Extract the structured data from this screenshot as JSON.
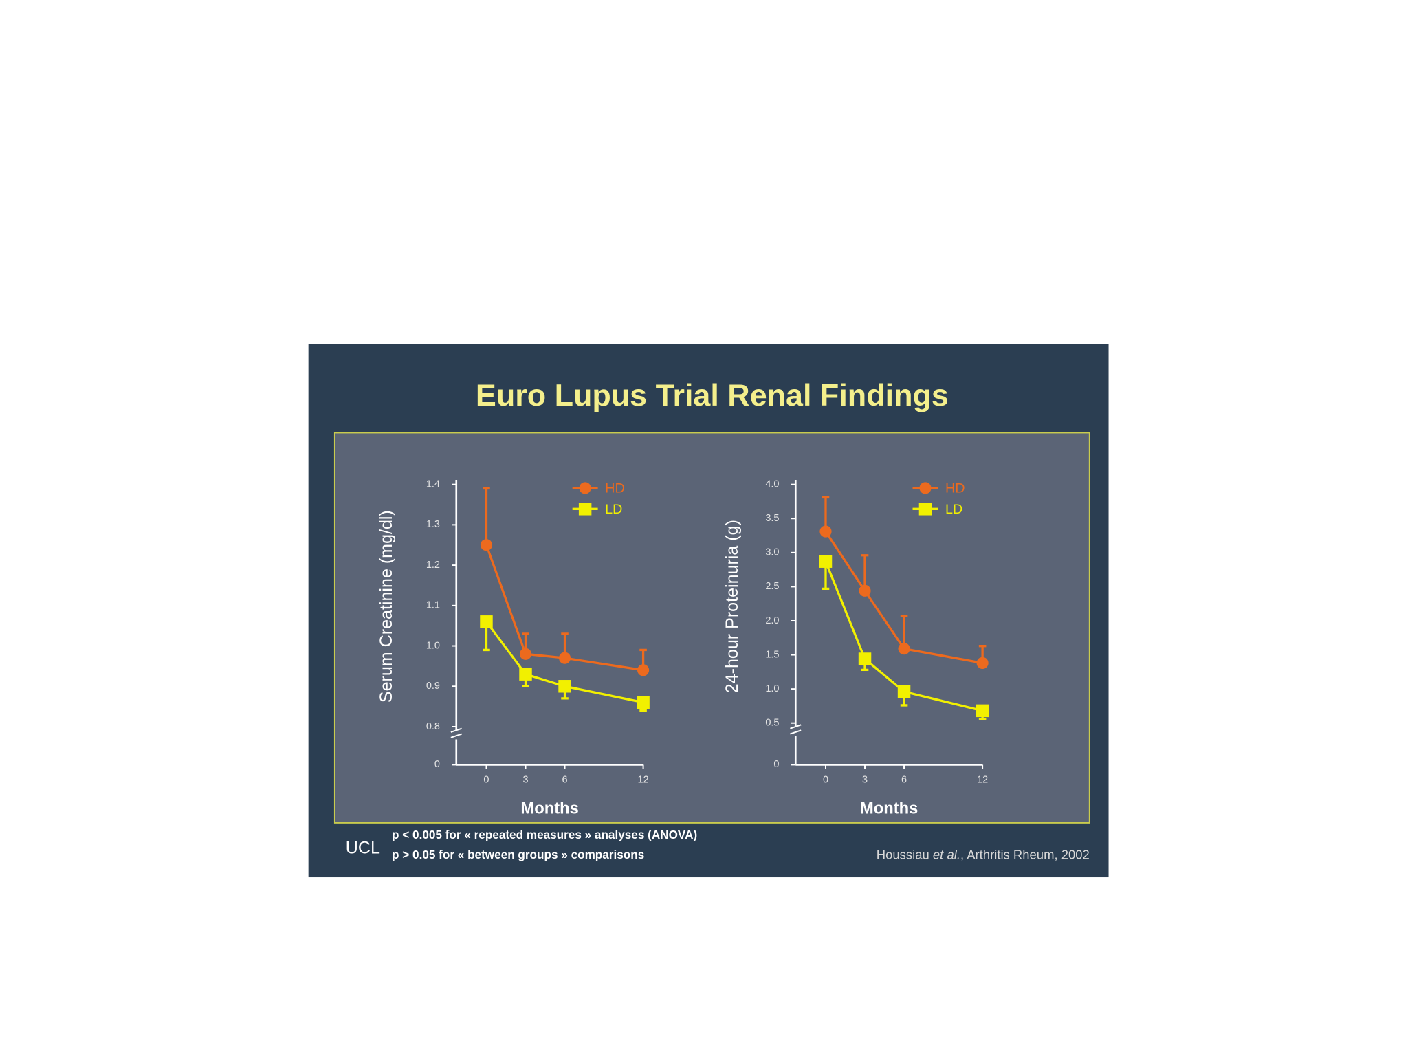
{
  "slide": {
    "title": "Euro Lupus Trial Renal Findings",
    "logo": "UCL",
    "notes": [
      "p < 0.005 for « repeated measures » analyses (ANOVA)",
      "p > 0.05 for « between groups » comparisons"
    ],
    "citation": [
      "Houssiau ",
      "et al.",
      ", Arthritis Rheum, 2002"
    ]
  },
  "chart_data": [
    {
      "type": "line",
      "y_label": "Serum Creatinine (mg/dl)",
      "x_label": "Months",
      "x": [
        0,
        3,
        6,
        12
      ],
      "xlim": [
        -2.3,
        12
      ],
      "xticks": [
        0,
        3,
        6,
        12
      ],
      "ylim": [
        0,
        1.4
      ],
      "y_break": [
        0,
        0.8
      ],
      "yticks": [
        0,
        0.8,
        0.9,
        {
          "value": 1,
          "label": "1.0"
        },
        1.1,
        1.2,
        1.3,
        1.4
      ],
      "series": [
        {
          "name": "HD",
          "color": "#ec6a1e",
          "marker": "circle",
          "error_direction": "up",
          "values": [
            1.25,
            0.98,
            0.97,
            0.94
          ],
          "errors": [
            0.14,
            0.05,
            0.06,
            0.05
          ]
        },
        {
          "name": "LD",
          "color": "#f2f000",
          "marker": "square",
          "error_direction": "down",
          "values": [
            1.06,
            0.93,
            0.9,
            0.86
          ],
          "errors": [
            0.07,
            0.03,
            0.03,
            0.02
          ]
        }
      ]
    },
    {
      "type": "line",
      "y_label": "24-hour Proteinuria (g)",
      "x_label": "Months",
      "x": [
        0,
        3,
        6,
        12
      ],
      "xlim": [
        -2.3,
        12
      ],
      "xticks": [
        0,
        3,
        6,
        12
      ],
      "ylim": [
        0,
        4
      ],
      "y_break": [
        0,
        0.5
      ],
      "yticks": [
        0,
        0.5,
        {
          "value": 1,
          "label": "1.0"
        },
        1.5,
        {
          "value": 2,
          "label": "2.0"
        },
        2.5,
        {
          "value": 3,
          "label": "3.0"
        },
        3.5,
        {
          "value": 4,
          "label": "4.0"
        }
      ],
      "series": [
        {
          "name": "HD",
          "color": "#ec6a1e",
          "marker": "circle",
          "error_direction": "up",
          "values": [
            3.31,
            2.44,
            1.59,
            1.38
          ],
          "errors": [
            0.5,
            0.52,
            0.48,
            0.25
          ]
        },
        {
          "name": "LD",
          "color": "#f2f000",
          "marker": "square",
          "error_direction": "down",
          "values": [
            2.87,
            1.44,
            0.96,
            0.68
          ],
          "errors": [
            0.4,
            0.16,
            0.2,
            0.12
          ]
        }
      ]
    }
  ]
}
